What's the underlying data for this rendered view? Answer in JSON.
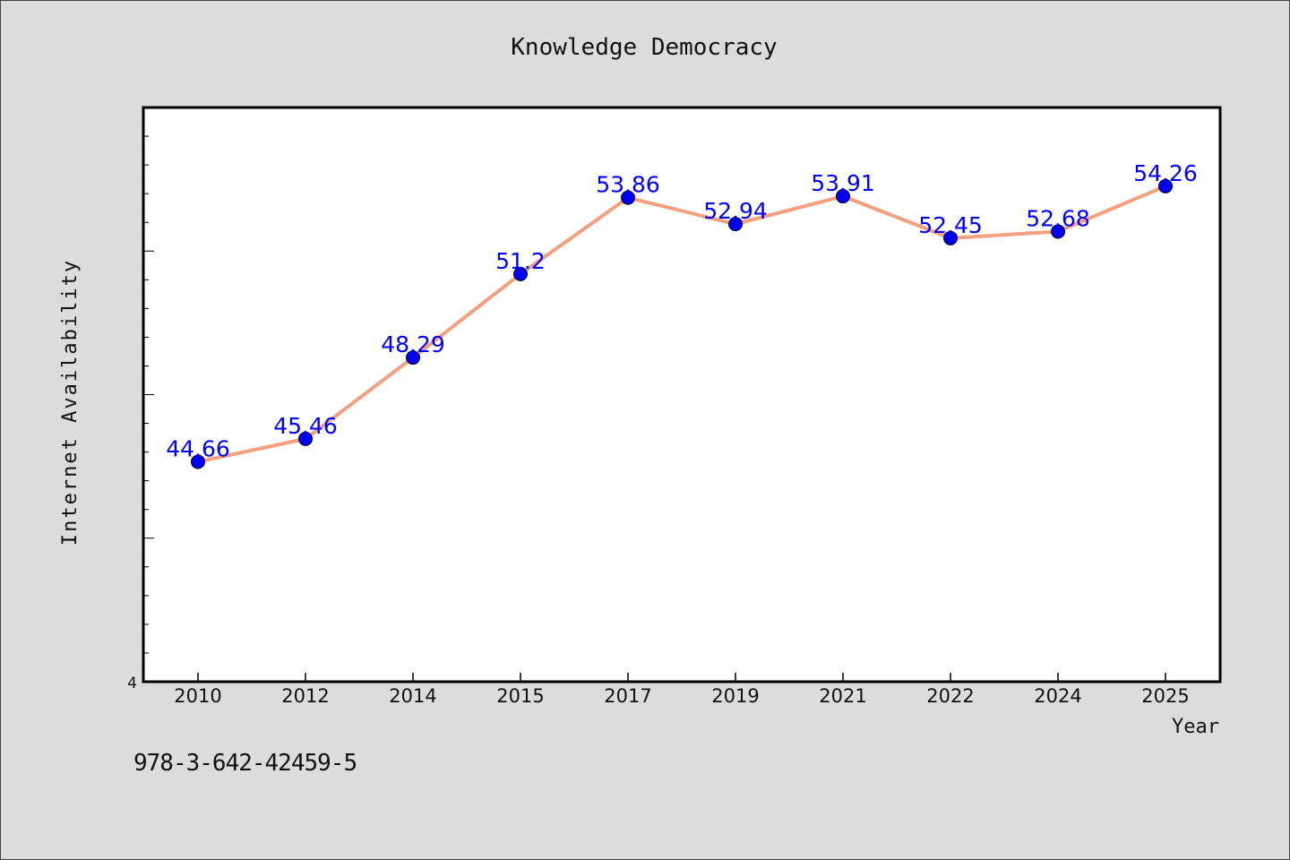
{
  "chart_data": {
    "type": "line",
    "title": "Knowledge Democracy",
    "xlabel": "Year",
    "ylabel": "Internet Availability",
    "categories": [
      "2010",
      "2012",
      "2014",
      "2015",
      "2017",
      "2019",
      "2021",
      "2022",
      "2024",
      "2025"
    ],
    "series": [
      {
        "values": [
          44.66,
          45.46,
          48.29,
          51.2,
          53.86,
          52.94,
          53.91,
          52.45,
          52.68,
          54.26
        ],
        "labels": [
          "44.66",
          "45.46",
          "48.29",
          "51.2",
          "53.86",
          "52.94",
          "53.91",
          "52.45",
          "52.68",
          "54.26"
        ]
      }
    ],
    "y_tick_label": "4",
    "ylim": [
      37,
      57
    ],
    "grid": false,
    "line_color": "#f4a07f",
    "marker_color": "#0000ee",
    "data_label_color": "#0000ff",
    "background_color": "#dcdcdc",
    "plot_background_color": "#ffffff"
  },
  "annotation": {
    "isbn": "978-3-642-42459-5"
  }
}
